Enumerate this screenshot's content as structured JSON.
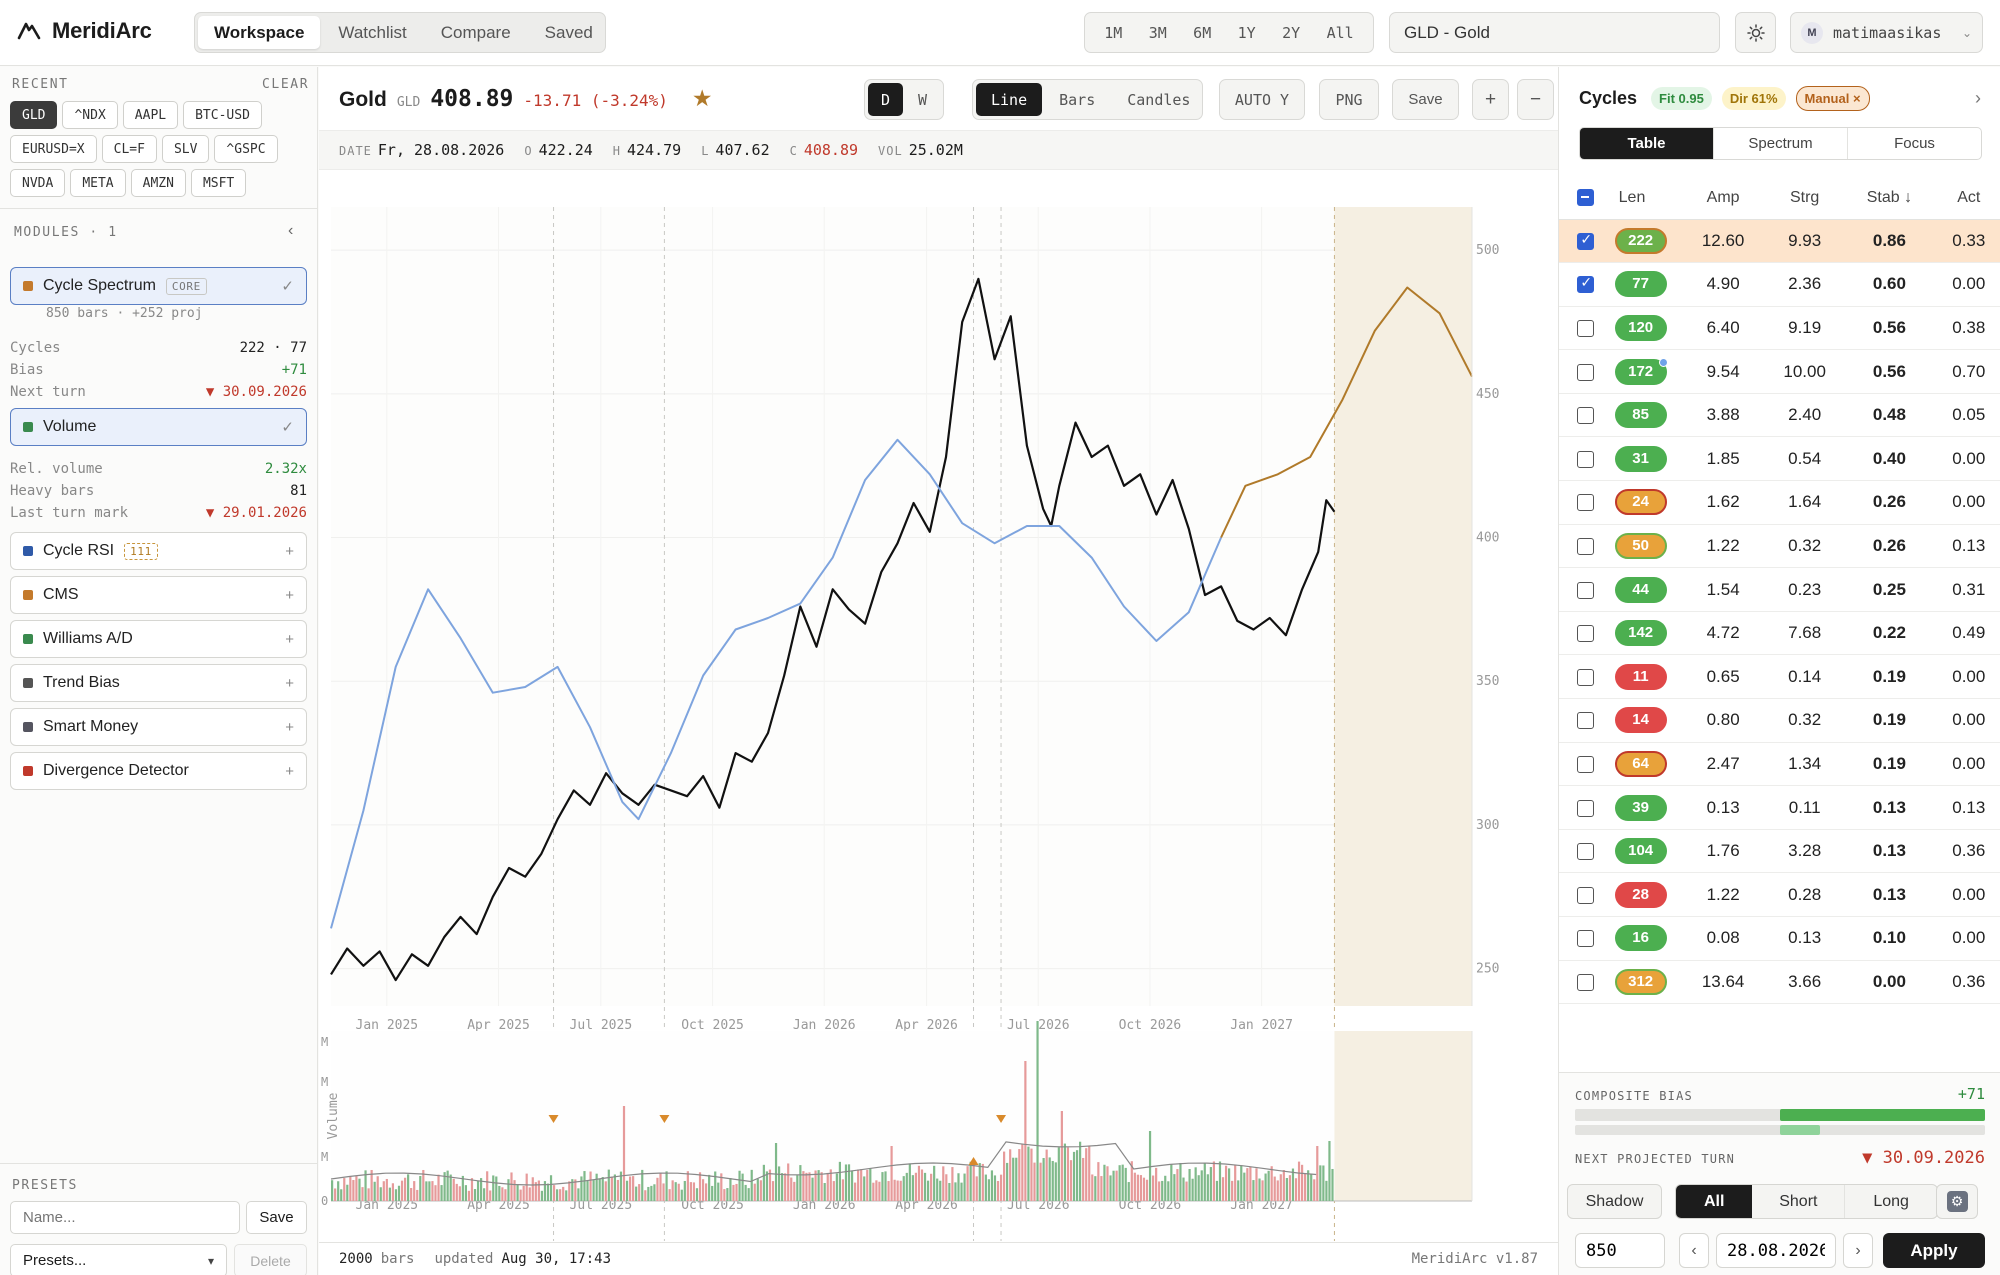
{
  "app": {
    "name": "MeridiArc"
  },
  "nav": {
    "tabs": [
      "Workspace",
      "Watchlist",
      "Compare",
      "Saved"
    ],
    "active": 0
  },
  "ranges": [
    "1M",
    "3M",
    "6M",
    "1Y",
    "2Y",
    "All"
  ],
  "search": {
    "value": "GLD - Gold",
    "placeholder": ""
  },
  "user": {
    "initial": "M",
    "name": "matimaasikas"
  },
  "sidebar": {
    "recent_label": "RECENT",
    "clear_label": "CLEAR",
    "recent": [
      "GLD",
      "^NDX",
      "AAPL",
      "BTC-USD",
      "EURUSD=X",
      "CL=F",
      "SLV",
      "^GSPC",
      "NVDA",
      "META",
      "AMZN",
      "MSFT"
    ],
    "modules_label": "MODULES · 1",
    "modules": [
      {
        "name": "Cycle Spectrum",
        "tag": "CORE",
        "color": "#c47a2c",
        "state": "✓"
      },
      {
        "name": "Volume",
        "color": "#3a8a4e",
        "state": "✓"
      },
      {
        "name": "Cycle RSI",
        "tag": "111",
        "color": "#2f5aa8",
        "state": "+"
      },
      {
        "name": "CMS",
        "color": "#c47a2c",
        "state": "+"
      },
      {
        "name": "Williams A/D",
        "color": "#3a8a4e",
        "state": "+"
      },
      {
        "name": "Trend Bias",
        "color": "#555555",
        "state": "+"
      },
      {
        "name": "Smart Money",
        "color": "#555560",
        "state": "+"
      },
      {
        "name": "Divergence Detector",
        "color": "#c0392b",
        "state": "+"
      }
    ],
    "spectrum_sub": "850 bars · +252 proj",
    "spectrum_stats": [
      {
        "k": "Cycles",
        "v": "222 · 77"
      },
      {
        "k": "Bias",
        "v": "+71"
      },
      {
        "k": "Next turn",
        "v": "▼ 30.09.2026"
      }
    ],
    "volume_stats": [
      {
        "k": "Rel. volume",
        "v": "2.32x"
      },
      {
        "k": "Heavy bars",
        "v": "81"
      },
      {
        "k": "Last turn mark",
        "v": "▼ 29.01.2026"
      }
    ],
    "presets_label": "PRESETS",
    "preset_name_placeholder": "Name...",
    "save_label": "Save",
    "preset_select": "Presets...",
    "delete_label": "Delete"
  },
  "chart_head": {
    "name": "Gold",
    "ticker": "GLD",
    "price": "408.89",
    "change": "-13.71 (-3.24%)",
    "interval": [
      "D",
      "W"
    ],
    "styles": [
      "Line",
      "Bars",
      "Candles"
    ],
    "auto_y": "AUTO Y",
    "png": "PNG",
    "save": "Save",
    "plus": "+",
    "minus": "−"
  },
  "ohlc": {
    "date_k": "DATE",
    "date": "Fr, 28.08.2026",
    "o_k": "O",
    "o": "422.24",
    "h_k": "H",
    "h": "424.79",
    "l_k": "L",
    "l": "407.62",
    "c_k": "C",
    "c": "408.89",
    "vol_k": "VOL",
    "vol": "25.02M"
  },
  "chart_data": {
    "type": "line",
    "x_ticks": [
      "Jan 2025",
      "Apr 2025",
      "Jul 2025",
      "Oct 2025",
      "Jan 2026",
      "Apr 2026",
      "Jul 2026",
      "Oct 2026",
      "Jan 2027"
    ],
    "y_ticks": [
      250,
      300,
      350,
      400,
      450,
      500
    ],
    "ylim": [
      237,
      515
    ],
    "projection_start": "Aug 2026",
    "volume_label": "Volume",
    "volume_ticks": [
      "M",
      "M",
      "M",
      "0"
    ],
    "series": [
      {
        "name": "Price",
        "color": "#111111",
        "points": [
          [
            0,
            248
          ],
          [
            2,
            257
          ],
          [
            4,
            251
          ],
          [
            6,
            256
          ],
          [
            8,
            246
          ],
          [
            10,
            255
          ],
          [
            12,
            251
          ],
          [
            14,
            261
          ],
          [
            16,
            268
          ],
          [
            18,
            262
          ],
          [
            20,
            275
          ],
          [
            22,
            285
          ],
          [
            24,
            282
          ],
          [
            26,
            290
          ],
          [
            28,
            302
          ],
          [
            30,
            312
          ],
          [
            32,
            307
          ],
          [
            34,
            318
          ],
          [
            36,
            311
          ],
          [
            38,
            307
          ],
          [
            40,
            314
          ],
          [
            42,
            312
          ],
          [
            44,
            310
          ],
          [
            46,
            317
          ],
          [
            48,
            306
          ],
          [
            50,
            325
          ],
          [
            52,
            322
          ],
          [
            54,
            332
          ],
          [
            56,
            352
          ],
          [
            58,
            376
          ],
          [
            60,
            362
          ],
          [
            62,
            382
          ],
          [
            64,
            375
          ],
          [
            66,
            370
          ],
          [
            68,
            388
          ],
          [
            70,
            398
          ],
          [
            72,
            412
          ],
          [
            74,
            402
          ],
          [
            76,
            428
          ],
          [
            78,
            475
          ],
          [
            80,
            490
          ],
          [
            82,
            462
          ],
          [
            84,
            477
          ],
          [
            86,
            432
          ],
          [
            88,
            410
          ],
          [
            89,
            404
          ],
          [
            90,
            418
          ],
          [
            92,
            440
          ],
          [
            94,
            428
          ],
          [
            96,
            432
          ],
          [
            98,
            418
          ],
          [
            100,
            422
          ],
          [
            102,
            408
          ],
          [
            104,
            420
          ],
          [
            106,
            403
          ],
          [
            108,
            380
          ],
          [
            110,
            383
          ],
          [
            112,
            371
          ],
          [
            114,
            368
          ],
          [
            116,
            372
          ],
          [
            118,
            366
          ],
          [
            120,
            382
          ],
          [
            122,
            395
          ],
          [
            123,
            413
          ],
          [
            124,
            409
          ]
        ]
      },
      {
        "name": "Cycle fit",
        "color": "#7ea4de",
        "points": [
          [
            0,
            264
          ],
          [
            4,
            305
          ],
          [
            8,
            355
          ],
          [
            12,
            382
          ],
          [
            16,
            365
          ],
          [
            20,
            346
          ],
          [
            24,
            348
          ],
          [
            28,
            355
          ],
          [
            32,
            334
          ],
          [
            36,
            308
          ],
          [
            38,
            302
          ],
          [
            42,
            325
          ],
          [
            46,
            352
          ],
          [
            50,
            368
          ],
          [
            54,
            372
          ],
          [
            58,
            377
          ],
          [
            62,
            393
          ],
          [
            66,
            420
          ],
          [
            70,
            434
          ],
          [
            74,
            422
          ],
          [
            78,
            405
          ],
          [
            82,
            398
          ],
          [
            86,
            404
          ],
          [
            90,
            404
          ],
          [
            94,
            393
          ],
          [
            98,
            376
          ],
          [
            102,
            364
          ],
          [
            106,
            374
          ],
          [
            110,
            400
          ]
        ]
      },
      {
        "name": "Projection",
        "color": "#b07a2a",
        "points": [
          [
            110,
            400
          ],
          [
            113,
            418
          ],
          [
            117,
            422
          ],
          [
            121,
            428
          ],
          [
            125,
            448
          ],
          [
            129,
            472
          ],
          [
            133,
            487
          ],
          [
            137,
            478
          ],
          [
            141,
            456
          ]
        ]
      }
    ]
  },
  "status": {
    "bars_count": "2000",
    "bars_label": "bars",
    "updated_label": "updated",
    "updated_value": "Aug 30, 17:43",
    "version": "MeridiArc v1.87"
  },
  "rpanel": {
    "title": "Cycles",
    "badges": [
      {
        "text": "Fit 0.95",
        "bg": "#e3f5e6",
        "fg": "#2e8b3e"
      },
      {
        "text": "Dir 61%",
        "bg": "#fdf3c9",
        "fg": "#a07508"
      },
      {
        "text": "Manual ×",
        "bg": "#fbe7d2",
        "fg": "#b3621c"
      }
    ],
    "chevron": "›",
    "tabs": [
      "Table",
      "Spectrum",
      "Focus"
    ],
    "columns": [
      "Len",
      "Amp",
      "Strg",
      "Stab ↓",
      "Act"
    ],
    "rows": [
      {
        "len": "222",
        "amp": "12.60",
        "strg": "9.93",
        "stab": "0.86",
        "act": "0.33",
        "color": "#6cb14a",
        "ring": "#c47a2c",
        "checked": true,
        "hl": true
      },
      {
        "len": "77",
        "amp": "4.90",
        "strg": "2.36",
        "stab": "0.60",
        "act": "0.00",
        "color": "#4caf50",
        "checked": true
      },
      {
        "len": "120",
        "amp": "6.40",
        "strg": "9.19",
        "stab": "0.56",
        "act": "0.38",
        "color": "#4caf50"
      },
      {
        "len": "172",
        "amp": "9.54",
        "strg": "10.00",
        "stab": "0.56",
        "act": "0.70",
        "color": "#4caf50",
        "dot": true
      },
      {
        "len": "85",
        "amp": "3.88",
        "strg": "2.40",
        "stab": "0.48",
        "act": "0.05",
        "color": "#4caf50"
      },
      {
        "len": "31",
        "amp": "1.85",
        "strg": "0.54",
        "stab": "0.40",
        "act": "0.00",
        "color": "#4caf50"
      },
      {
        "len": "24",
        "amp": "1.62",
        "strg": "1.64",
        "stab": "0.26",
        "act": "0.00",
        "color": "#e8a23a",
        "ring": "#c0392b"
      },
      {
        "len": "50",
        "amp": "1.22",
        "strg": "0.32",
        "stab": "0.26",
        "act": "0.13",
        "color": "#e8a23a",
        "ring": "#6cb14a"
      },
      {
        "len": "44",
        "amp": "1.54",
        "strg": "0.23",
        "stab": "0.25",
        "act": "0.31",
        "color": "#4caf50"
      },
      {
        "len": "142",
        "amp": "4.72",
        "strg": "7.68",
        "stab": "0.22",
        "act": "0.49",
        "color": "#4caf50"
      },
      {
        "len": "11",
        "amp": "0.65",
        "strg": "0.14",
        "stab": "0.19",
        "act": "0.00",
        "color": "#e04848"
      },
      {
        "len": "14",
        "amp": "0.80",
        "strg": "0.32",
        "stab": "0.19",
        "act": "0.00",
        "color": "#e04848"
      },
      {
        "len": "64",
        "amp": "2.47",
        "strg": "1.34",
        "stab": "0.19",
        "act": "0.00",
        "color": "#e8a23a",
        "ring": "#c0392b"
      },
      {
        "len": "39",
        "amp": "0.13",
        "strg": "0.11",
        "stab": "0.13",
        "act": "0.13",
        "color": "#4caf50"
      },
      {
        "len": "104",
        "amp": "1.76",
        "strg": "3.28",
        "stab": "0.13",
        "act": "0.36",
        "color": "#4caf50"
      },
      {
        "len": "28",
        "amp": "1.22",
        "strg": "0.28",
        "stab": "0.13",
        "act": "0.00",
        "color": "#e04848"
      },
      {
        "len": "16",
        "amp": "0.08",
        "strg": "0.13",
        "stab": "0.10",
        "act": "0.00",
        "color": "#4caf50"
      },
      {
        "len": "312",
        "amp": "13.64",
        "strg": "3.66",
        "stab": "0.00",
        "act": "0.36",
        "color": "#e8a23a",
        "ring": "#6cb14a"
      }
    ],
    "composite_label": "COMPOSITE BIAS",
    "composite_value": "+71",
    "composite_fraction": 0.71,
    "next_turn_label": "NEXT PROJECTED TURN",
    "next_turn_value": "▼ 30.09.2026",
    "modes": [
      "Shadow",
      "All",
      "Short",
      "Long"
    ],
    "bars_value": "850",
    "date_value": "28.08.2026",
    "prev": "‹",
    "next": "›",
    "apply": "Apply"
  },
  "colors": {
    "accent": "#2e5fd3",
    "projection_bg": "#f5efe2",
    "up": "#3a8a4e",
    "down": "#c0392b"
  }
}
